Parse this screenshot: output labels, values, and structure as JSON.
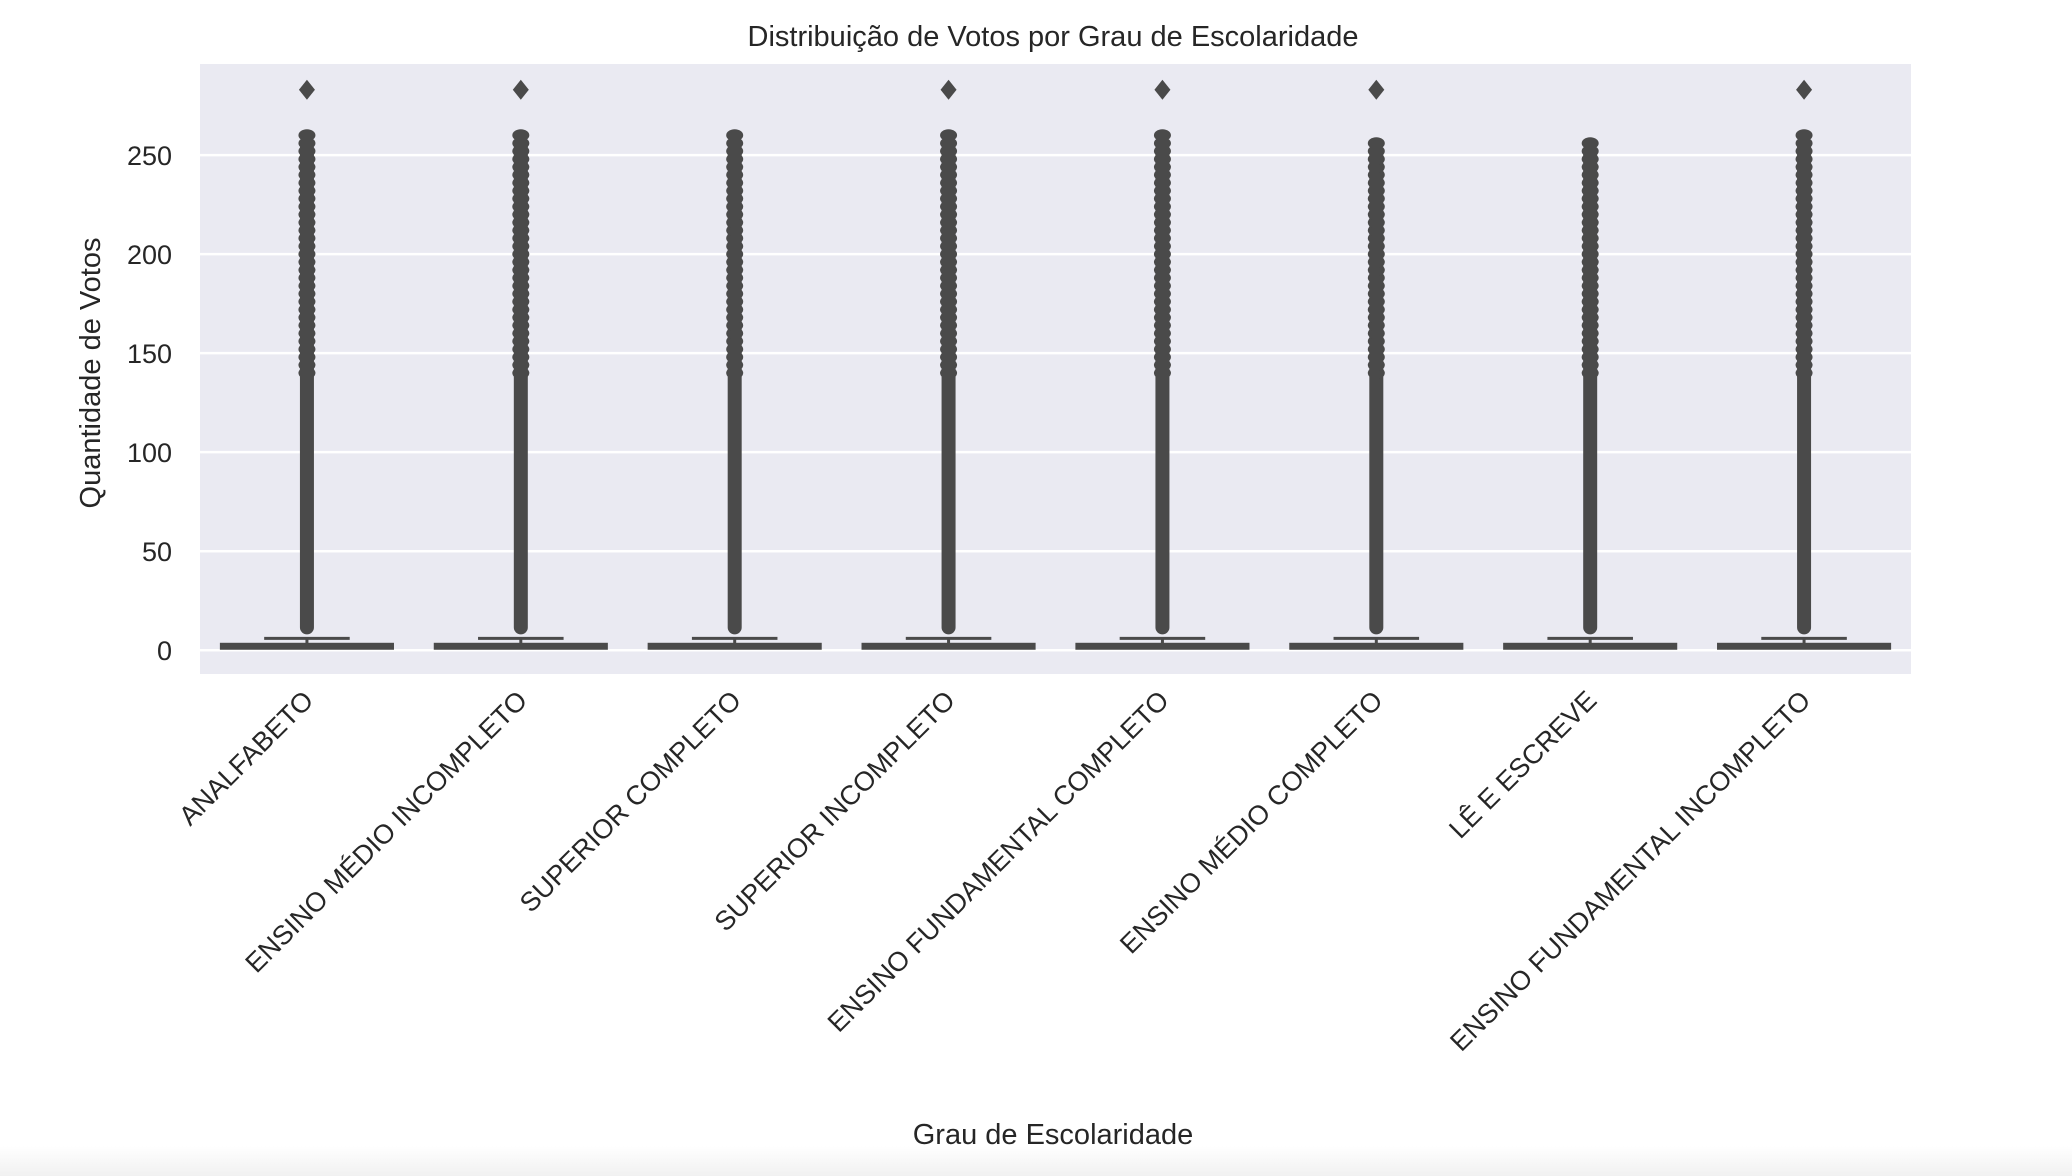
{
  "chart_data": {
    "type": "box",
    "title": "Distribuição de Votos por Grau de Escolaridade",
    "xlabel": "Grau de Escolaridade",
    "ylabel": "Quantidade de Votos",
    "ylim": [
      -12,
      296
    ],
    "yticks": [
      0,
      50,
      100,
      150,
      200,
      250
    ],
    "grid": true,
    "categories": [
      "ANALFABETO",
      "ENSINO MÉDIO INCOMPLETO",
      "SUPERIOR COMPLETO",
      "SUPERIOR INCOMPLETO",
      "ENSINO FUNDAMENTAL COMPLETO",
      "ENSINO MÉDIO COMPLETO",
      "LÊ E ESCREVE",
      "ENSINO FUNDAMENTAL INCOMPLETO"
    ],
    "boxes": [
      {
        "q1": 1,
        "median": 2,
        "q3": 3,
        "whisker_low": 1,
        "whisker_high": 6,
        "outliers_dense_to": 260,
        "outliers": [
          283
        ]
      },
      {
        "q1": 1,
        "median": 2,
        "q3": 3,
        "whisker_low": 1,
        "whisker_high": 6,
        "outliers_dense_to": 261,
        "outliers": [
          283
        ]
      },
      {
        "q1": 1,
        "median": 2,
        "q3": 3,
        "whisker_low": 1,
        "whisker_high": 6,
        "outliers_dense_to": 260,
        "outliers": []
      },
      {
        "q1": 1,
        "median": 2,
        "q3": 3,
        "whisker_low": 1,
        "whisker_high": 6,
        "outliers_dense_to": 260,
        "outliers": [
          283
        ]
      },
      {
        "q1": 1,
        "median": 2,
        "q3": 3,
        "whisker_low": 1,
        "whisker_high": 6,
        "outliers_dense_to": 260,
        "outliers": [
          283
        ]
      },
      {
        "q1": 1,
        "median": 2,
        "q3": 3,
        "whisker_low": 1,
        "whisker_high": 6,
        "outliers_dense_to": 259,
        "outliers": [
          283
        ]
      },
      {
        "q1": 1,
        "median": 2,
        "q3": 3,
        "whisker_low": 1,
        "whisker_high": 6,
        "outliers_dense_to": 259,
        "outliers": []
      },
      {
        "q1": 1,
        "median": 2,
        "q3": 3,
        "whisker_low": 1,
        "whisker_high": 6,
        "outliers_dense_to": 261,
        "outliers": [
          283
        ]
      }
    ],
    "colors": {
      "plot_background": "#eaeaf2",
      "grid": "#ffffff",
      "box": "#4a4a4a",
      "text": "#262626"
    }
  }
}
